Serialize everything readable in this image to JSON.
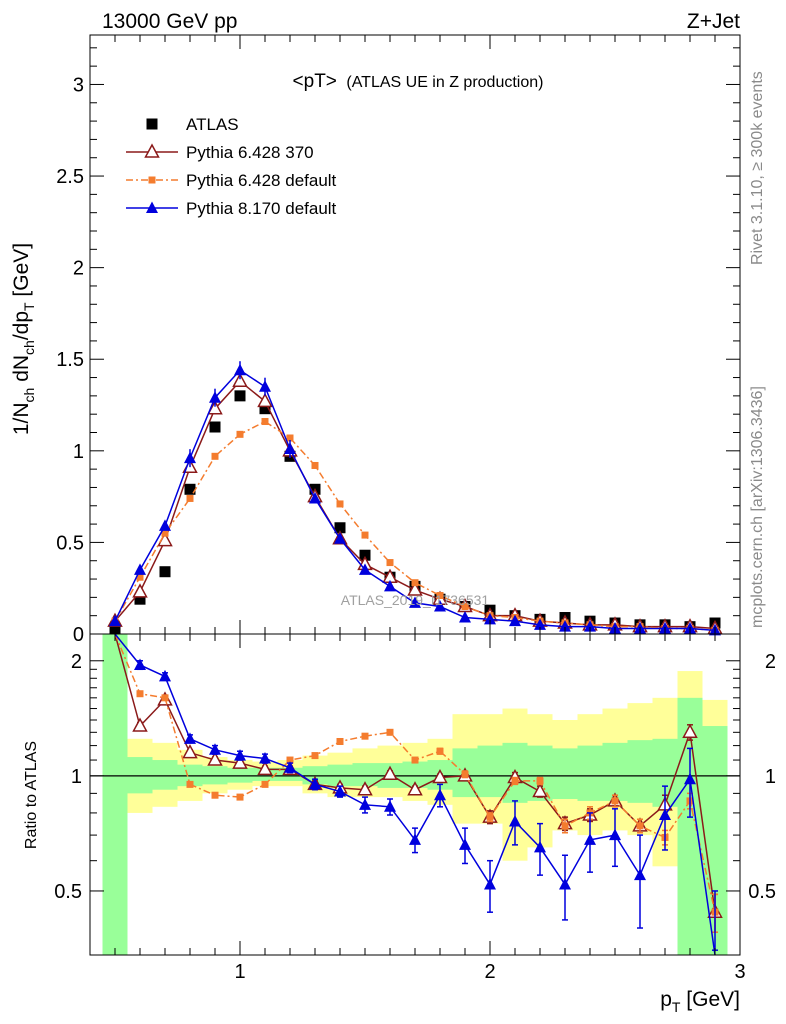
{
  "header": {
    "left": "13000 GeV pp",
    "right": "Z+Jet"
  },
  "side_labels": {
    "rivet": "Rivet 3.1.10, ≥ 300k events",
    "mcplots": "mcplots.cern.ch [arXiv:1306.3436]"
  },
  "watermark": "ATLAS_2019_I1736531",
  "colors": {
    "atlas": "#000000",
    "p6_370": "#8b1a1a",
    "p6_default": "#f47c2e",
    "p8_default": "#0000dd",
    "band_inner": "#99ff99",
    "band_outer": "#ffff99"
  },
  "chart_data": [
    {
      "type": "scatter",
      "title_main": "<pT>",
      "title_sub": "(ATLAS UE in Z production)",
      "ylabel": "1/N_ch dN_ch/dp_T [GeV]",
      "ylim": [
        0,
        3.27
      ],
      "xlim": [
        0.4,
        3.0
      ],
      "yticks": [
        "0",
        "0.5",
        "1",
        "1.5",
        "2",
        "2.5",
        "3"
      ],
      "legend_position": "top-left",
      "x": [
        0.5,
        0.6,
        0.7,
        0.8,
        0.9,
        1.0,
        1.1,
        1.2,
        1.3,
        1.4,
        1.5,
        1.6,
        1.7,
        1.8,
        1.9,
        2.0,
        2.1,
        2.2,
        2.3,
        2.4,
        2.5,
        2.6,
        2.7,
        2.8,
        2.9
      ],
      "series": [
        {
          "name": "ATLAS",
          "marker": "square",
          "values": [
            0.03,
            0.19,
            0.34,
            0.79,
            1.13,
            1.3,
            1.23,
            0.97,
            0.79,
            0.58,
            0.43,
            0.31,
            0.26,
            0.19,
            0.15,
            0.13,
            0.1,
            0.08,
            0.09,
            0.07,
            0.06,
            0.05,
            0.05,
            0.04,
            0.06
          ]
        },
        {
          "name": "Pythia 6.428 370",
          "marker": "open-triangle",
          "values": [
            0.07,
            0.23,
            0.51,
            0.91,
            1.23,
            1.38,
            1.27,
            1.0,
            0.75,
            0.52,
            0.38,
            0.31,
            0.24,
            0.19,
            0.15,
            0.1,
            0.1,
            0.07,
            0.06,
            0.05,
            0.05,
            0.04,
            0.04,
            0.04,
            0.03
          ]
        },
        {
          "name": "Pythia 6.428 default",
          "marker": "small-square",
          "values": [
            0.07,
            0.31,
            0.55,
            0.74,
            0.97,
            1.09,
            1.16,
            1.07,
            0.92,
            0.71,
            0.54,
            0.39,
            0.28,
            0.21,
            0.15,
            0.1,
            0.09,
            0.07,
            0.06,
            0.05,
            0.04,
            0.04,
            0.03,
            0.03,
            0.02
          ]
        },
        {
          "name": "Pythia 8.170 default",
          "marker": "filled-triangle",
          "values": [
            0.07,
            0.35,
            0.59,
            0.96,
            1.29,
            1.44,
            1.35,
            1.01,
            0.74,
            0.52,
            0.35,
            0.26,
            0.17,
            0.15,
            0.09,
            0.08,
            0.07,
            0.05,
            0.04,
            0.04,
            0.03,
            0.03,
            0.03,
            0.03,
            0.02
          ]
        }
      ]
    },
    {
      "type": "line",
      "ylabel": "Ratio to ATLAS",
      "xlabel": "p_T [GeV]",
      "ylim": [
        0.34,
        2.35
      ],
      "xlim": [
        0.4,
        3.0
      ],
      "yticks": [
        "0.5",
        "1",
        "2"
      ],
      "xticks": [
        "1",
        "2",
        "3"
      ],
      "x": [
        0.5,
        0.6,
        0.7,
        0.8,
        0.9,
        1.0,
        1.1,
        1.2,
        1.3,
        1.4,
        1.5,
        1.6,
        1.7,
        1.8,
        1.9,
        2.0,
        2.1,
        2.2,
        2.3,
        2.4,
        2.5,
        2.6,
        2.7,
        2.8,
        2.9
      ],
      "band_outer": [
        [
          0.3,
          2.5
        ],
        [
          0.8,
          1.25
        ],
        [
          0.83,
          1.22
        ],
        [
          0.86,
          1.17
        ],
        [
          0.9,
          1.12
        ],
        [
          0.92,
          1.1
        ],
        [
          0.94,
          1.09
        ],
        [
          0.94,
          1.1
        ],
        [
          0.9,
          1.13
        ],
        [
          0.88,
          1.15
        ],
        [
          0.88,
          1.18
        ],
        [
          0.88,
          1.2
        ],
        [
          0.86,
          1.22
        ],
        [
          0.84,
          1.25
        ],
        [
          0.75,
          1.45
        ],
        [
          0.75,
          1.45
        ],
        [
          0.6,
          1.5
        ],
        [
          0.65,
          1.45
        ],
        [
          0.72,
          1.4
        ],
        [
          0.7,
          1.45
        ],
        [
          0.72,
          1.5
        ],
        [
          0.7,
          1.55
        ],
        [
          0.58,
          1.6
        ],
        [
          0.3,
          1.88
        ],
        [
          0.3,
          1.58
        ]
      ],
      "band_inner": [
        [
          0.3,
          2.5
        ],
        [
          0.9,
          1.12
        ],
        [
          0.92,
          1.1
        ],
        [
          0.94,
          1.07
        ],
        [
          0.95,
          1.06
        ],
        [
          0.96,
          1.05
        ],
        [
          0.97,
          1.05
        ],
        [
          0.97,
          1.05
        ],
        [
          0.95,
          1.06
        ],
        [
          0.94,
          1.07
        ],
        [
          0.94,
          1.08
        ],
        [
          0.93,
          1.08
        ],
        [
          0.93,
          1.09
        ],
        [
          0.92,
          1.1
        ],
        [
          0.88,
          1.18
        ],
        [
          0.88,
          1.2
        ],
        [
          0.85,
          1.22
        ],
        [
          0.86,
          1.2
        ],
        [
          0.87,
          1.18
        ],
        [
          0.86,
          1.2
        ],
        [
          0.86,
          1.22
        ],
        [
          0.85,
          1.24
        ],
        [
          0.83,
          1.25
        ],
        [
          0.3,
          1.6
        ],
        [
          0.3,
          1.35
        ]
      ],
      "series": [
        {
          "name": "Pythia 6.428 370",
          "values": [
            2.5,
            1.35,
            1.58,
            1.15,
            1.1,
            1.08,
            1.04,
            1.04,
            0.95,
            0.93,
            0.92,
            1.01,
            0.92,
            0.99,
            1.0,
            0.78,
            0.99,
            0.91,
            0.75,
            0.79,
            0.86,
            0.74,
            0.84,
            1.3,
            0.44
          ],
          "errors": [
            0.0,
            0.03,
            0.03,
            0.02,
            0.02,
            0.02,
            0.02,
            0.02,
            0.02,
            0.02,
            0.02,
            0.02,
            0.02,
            0.02,
            0.02,
            0.03,
            0.03,
            0.03,
            0.03,
            0.03,
            0.03,
            0.03,
            0.05,
            0.06,
            0.05
          ]
        },
        {
          "name": "Pythia 6.428 default",
          "values": [
            2.5,
            1.64,
            1.6,
            0.95,
            0.89,
            0.88,
            0.95,
            1.1,
            1.13,
            1.23,
            1.27,
            1.3,
            1.1,
            1.16,
            1.01,
            0.78,
            0.97,
            0.97,
            0.74,
            0.8,
            0.86,
            0.74,
            0.69,
            0.86,
            0.44
          ],
          "errors": [
            0.0,
            0.02,
            0.02,
            0.01,
            0.01,
            0.01,
            0.01,
            0.01,
            0.01,
            0.01,
            0.01,
            0.01,
            0.01,
            0.02,
            0.02,
            0.02,
            0.02,
            0.02,
            0.03,
            0.03,
            0.03,
            0.03,
            0.03,
            0.04,
            0.05
          ]
        },
        {
          "name": "Pythia 8.170 default",
          "values": [
            2.5,
            1.95,
            1.82,
            1.25,
            1.17,
            1.13,
            1.11,
            1.05,
            0.95,
            0.91,
            0.84,
            0.83,
            0.68,
            0.89,
            0.66,
            0.52,
            0.76,
            0.65,
            0.52,
            0.68,
            0.7,
            0.55,
            0.79,
            0.98,
            0.3
          ],
          "errors": [
            0.0,
            0.05,
            0.04,
            0.03,
            0.03,
            0.03,
            0.03,
            0.03,
            0.03,
            0.03,
            0.04,
            0.04,
            0.05,
            0.06,
            0.07,
            0.08,
            0.1,
            0.1,
            0.1,
            0.12,
            0.12,
            0.15,
            0.15,
            0.2,
            0.2
          ]
        }
      ]
    }
  ]
}
